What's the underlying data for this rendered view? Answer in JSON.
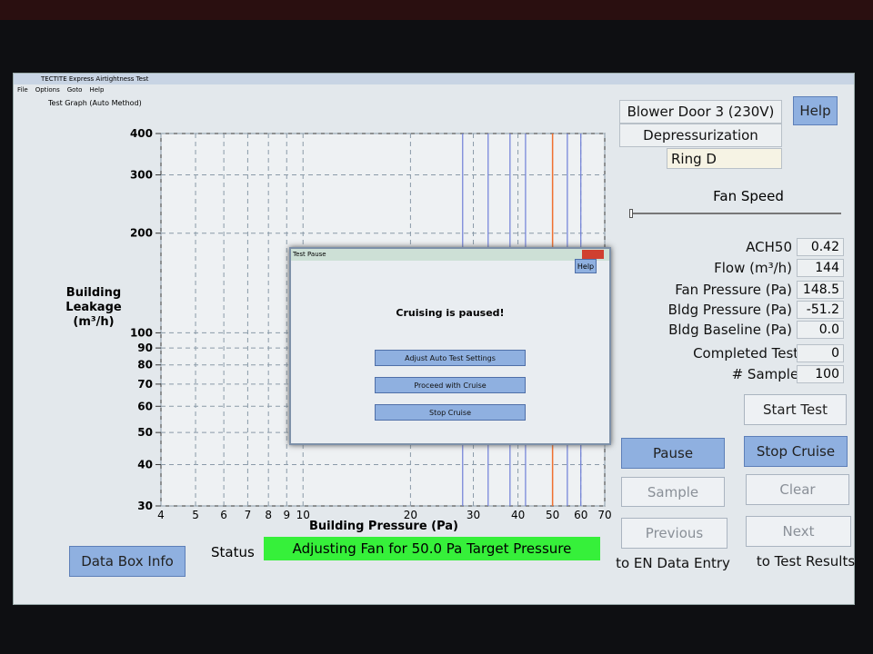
{
  "window": {
    "title": "TECTITE Express Airtightness Test",
    "menu": [
      "File",
      "Options",
      "Goto",
      "Help"
    ]
  },
  "panel_title": "Test Graph (Auto Method)",
  "graph": {
    "y_label": "Building Leakage (m³/h)",
    "x_label": "Building Pressure (Pa)",
    "log_scale": true,
    "grid": true,
    "xlim": [
      4,
      70
    ],
    "ylim": [
      30,
      400
    ],
    "xticks": [
      4,
      5,
      6,
      7,
      8,
      9,
      10,
      20,
      30,
      40,
      50,
      60,
      70
    ],
    "yticks": [
      30,
      40,
      50,
      60,
      70,
      80,
      90,
      100,
      200,
      300,
      400
    ],
    "pressure_lines": [
      28,
      33,
      38,
      42,
      55,
      60
    ],
    "pressure_line_color": "#6f7fd8",
    "target_pressure": 50,
    "target_color": "#f07030"
  },
  "device": {
    "name": "Blower Door 3 (230V)",
    "mode": "Depressurization",
    "ring": "Ring D",
    "fan_speed_label": "Fan Speed",
    "help": "Help"
  },
  "readings": [
    {
      "label": "ACH50",
      "value": "0.42"
    },
    {
      "label": "Flow (m³/h)",
      "value": "144"
    },
    {
      "label": "Fan Pressure (Pa)",
      "value": "148.5"
    },
    {
      "label": "Bldg Pressure (Pa)",
      "value": "-51.2"
    },
    {
      "label": "Bldg Baseline (Pa)",
      "value": "0.0"
    },
    {
      "label": "Completed Tests",
      "value": "0"
    },
    {
      "label": "# Samples",
      "value": "100"
    }
  ],
  "buttons": {
    "start_test": "Start Test",
    "pause": "Pause",
    "stop_cruise": "Stop Cruise",
    "sample": "Sample",
    "clear": "Clear",
    "previous": "Previous",
    "next": "Next"
  },
  "captions": {
    "previous": "to EN Data Entry",
    "next": "to Test Results"
  },
  "footer": {
    "data_box": "Data Box Info",
    "status_label": "Status",
    "status": "Adjusting Fan for 50.0 Pa Target Pressure"
  },
  "dialog": {
    "title": "Test Pause",
    "help": "Help",
    "message": "Cruising is paused!",
    "buttons": [
      "Adjust Auto Test Settings",
      "Proceed with Cruise",
      "Stop Cruise"
    ]
  }
}
